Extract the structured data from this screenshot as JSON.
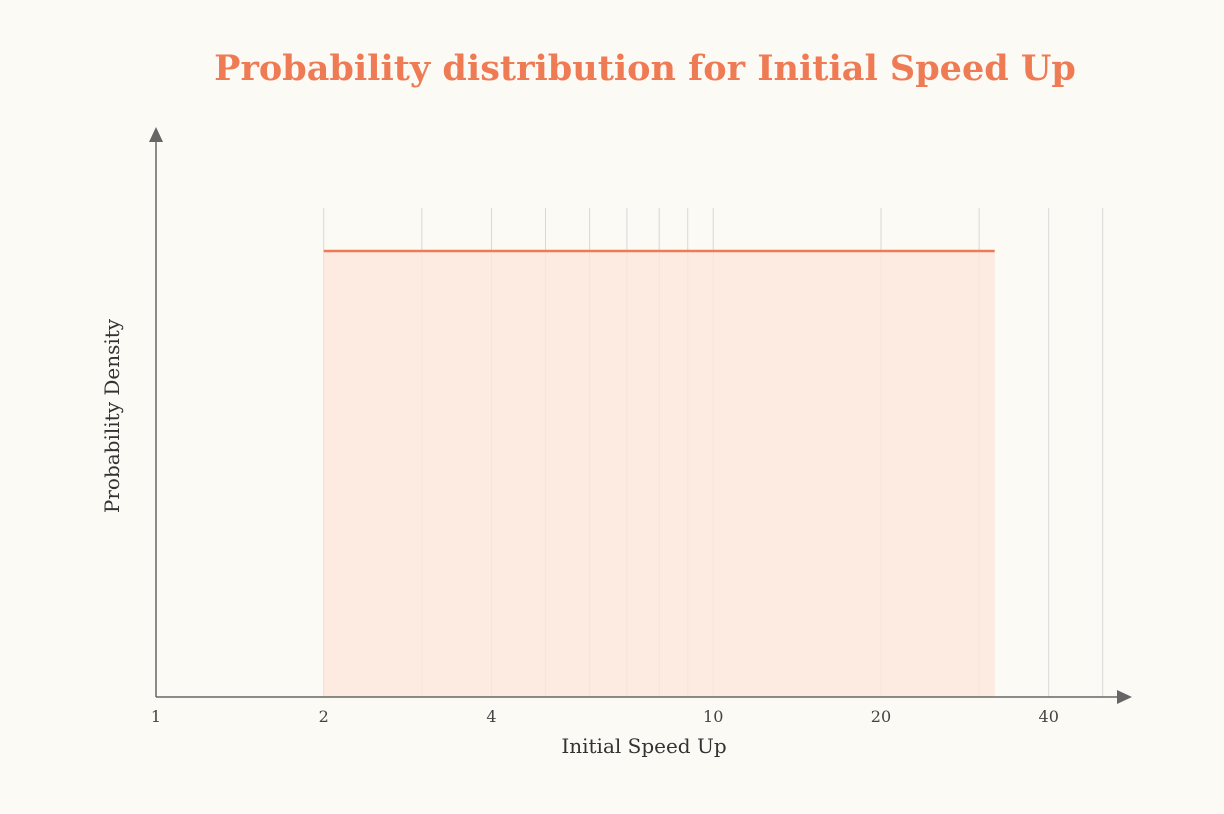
{
  "chart_data": {
    "type": "area",
    "title": "Probability distribution for Initial Speed Up",
    "xlabel": "Initial Speed Up",
    "ylabel": "Probability Density",
    "x_scale": "log",
    "xlim": [
      1,
      55
    ],
    "x_ticks": [
      1,
      2,
      4,
      10,
      20,
      40
    ],
    "x_tick_labels": [
      "1",
      "2",
      "4",
      "10",
      "20",
      "40"
    ],
    "minor_gridlines": [
      2,
      3,
      4,
      5,
      6,
      7,
      8,
      9,
      10,
      20,
      30,
      40,
      50
    ],
    "grid": true,
    "series": [
      {
        "x": [
          2,
          32
        ],
        "y": [
          1,
          1
        ]
      }
    ],
    "colors": {
      "line": "#ef7b55",
      "fill": "#fde6dc",
      "title": "#ef7b55",
      "grid": "#d8d8d8",
      "axis": "#666666"
    }
  }
}
